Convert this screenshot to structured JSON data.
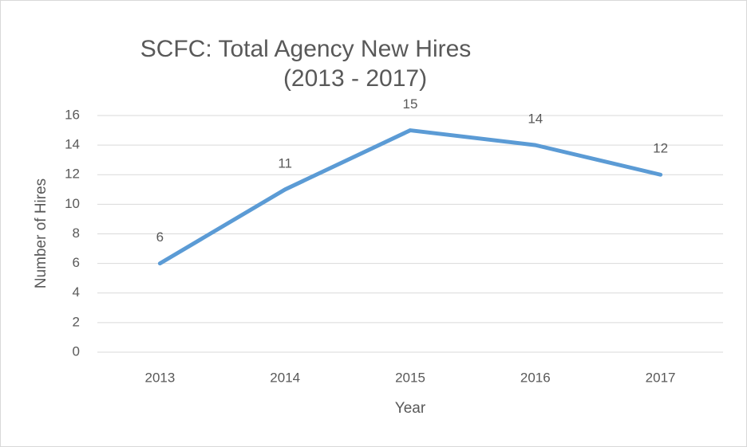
{
  "chart_data": {
    "type": "line",
    "title": "SCFC: Total Agency New Hires",
    "subtitle": "(2013 - 2017)",
    "x_label": "Year",
    "y_label": "Number of Hires",
    "categories": [
      "2013",
      "2014",
      "2015",
      "2016",
      "2017"
    ],
    "series": [
      {
        "name": "New Hires",
        "color": "#5b9bd5",
        "values": [
          6,
          11,
          15,
          14,
          12
        ]
      }
    ],
    "ylim": [
      0,
      16
    ],
    "yticks": [
      0,
      2,
      4,
      6,
      8,
      10,
      12,
      14,
      16
    ],
    "grid": true
  }
}
